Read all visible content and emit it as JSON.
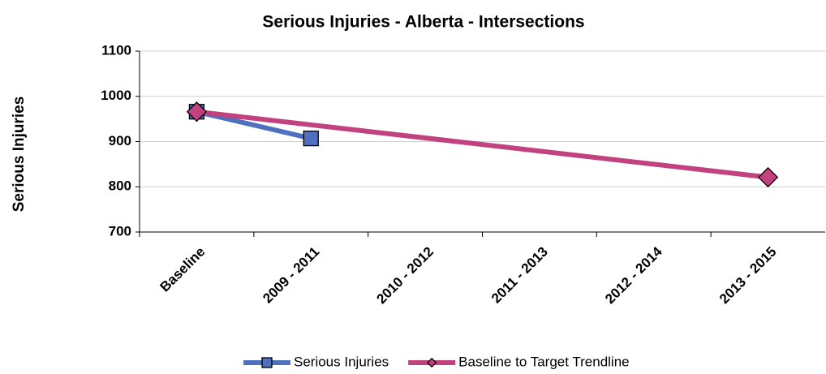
{
  "chart_data": {
    "type": "line",
    "title": "Serious Injuries - Alberta - Intersections",
    "y_label": "Serious Injuries",
    "categories": [
      "Baseline",
      "2009 - 2011",
      "2010 - 2012",
      "2011 - 2013",
      "2012 - 2014",
      "2013 - 2015"
    ],
    "series": [
      {
        "name": "Serious Injuries",
        "color": "#4f6fbf",
        "marker": "square",
        "values": [
          966,
          907,
          null,
          null,
          null,
          null
        ]
      },
      {
        "name": "Baseline to Target Trendline",
        "color": "#c2427f",
        "marker": "diamond",
        "values": [
          966,
          null,
          null,
          null,
          null,
          821
        ]
      }
    ],
    "connect_gaps": true,
    "ylim": [
      700,
      1100
    ],
    "yticks": [
      700,
      800,
      900,
      1000,
      1100
    ],
    "grid": true,
    "legend": "bottom"
  }
}
